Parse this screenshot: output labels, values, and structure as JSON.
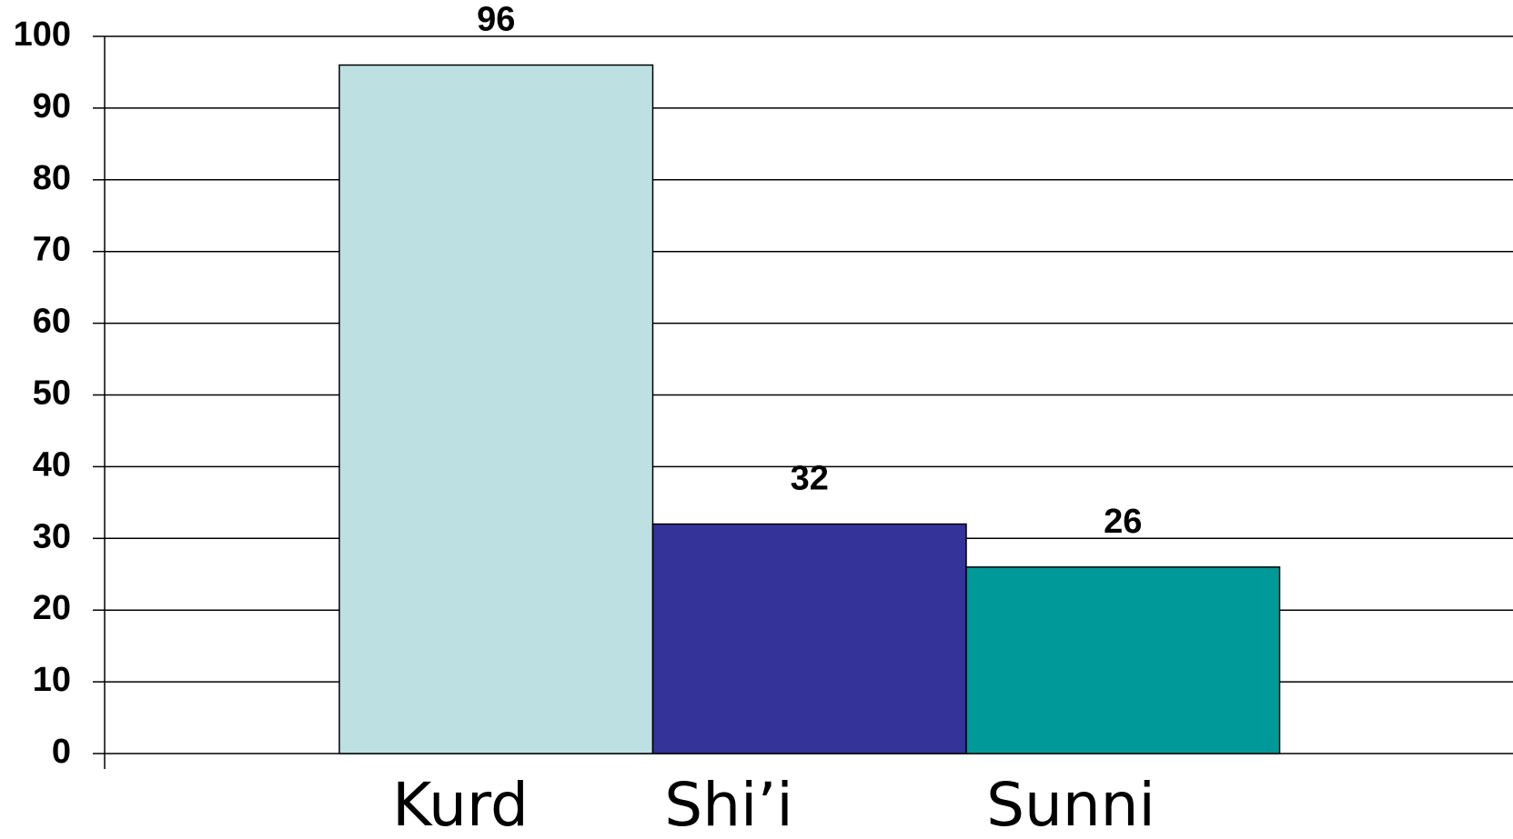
{
  "chart_data": {
    "type": "bar",
    "categories": [
      "Kurd",
      "Shi’i",
      "Sunni"
    ],
    "values": [
      96,
      32,
      26
    ],
    "colors": [
      "#bde0e3",
      "#333399",
      "#009999"
    ],
    "ylim": [
      0,
      100
    ],
    "yticks": [
      0,
      10,
      20,
      30,
      40,
      50,
      60,
      70,
      80,
      90,
      100
    ],
    "grid": true
  }
}
